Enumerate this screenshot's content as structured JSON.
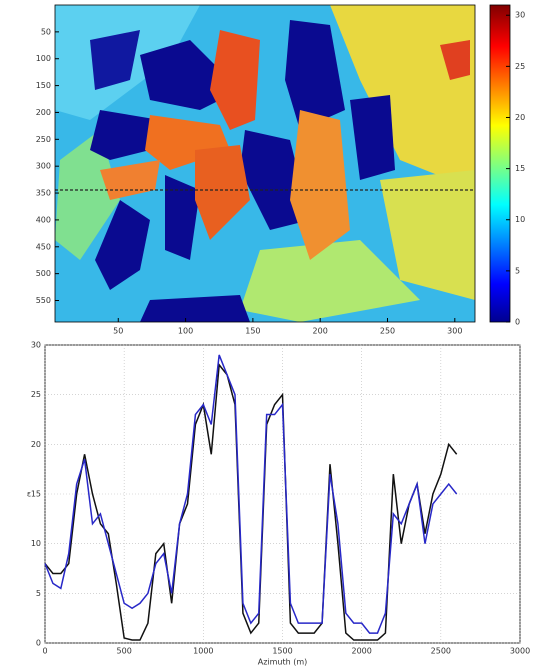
{
  "chart_data": [
    {
      "type": "heatmap",
      "xlim": [
        3,
        315
      ],
      "ylim": [
        0,
        590
      ],
      "xticks": [
        50,
        100,
        150,
        200,
        250,
        300
      ],
      "yticks": [
        50,
        100,
        150,
        200,
        250,
        300,
        350,
        400,
        450,
        500,
        550
      ],
      "colorbar": {
        "clim": [
          0,
          31
        ],
        "ticks": [
          0,
          5,
          10,
          15,
          20,
          25,
          30
        ]
      }
    },
    {
      "type": "line",
      "xlabel": "Azimuth (m)",
      "ylabel": "ε",
      "xlim": [
        0,
        3000
      ],
      "ylim": [
        0,
        30
      ],
      "xticks": [
        0,
        500,
        1000,
        1500,
        2000,
        2500,
        3000
      ],
      "yticks": [
        0,
        5,
        10,
        15,
        20,
        25,
        30
      ],
      "grid": true,
      "x": [
        0,
        50,
        100,
        150,
        200,
        250,
        300,
        350,
        400,
        450,
        500,
        550,
        600,
        650,
        700,
        750,
        800,
        850,
        900,
        950,
        1000,
        1050,
        1100,
        1150,
        1200,
        1250,
        1300,
        1350,
        1400,
        1450,
        1500,
        1550,
        1600,
        1650,
        1700,
        1750,
        1800,
        1850,
        1900,
        1950,
        2000,
        2050,
        2100,
        2150,
        2200,
        2250,
        2300,
        2350,
        2400,
        2450,
        2500,
        2550,
        2600
      ],
      "series": [
        {
          "color": "#111111",
          "values": [
            8,
            7,
            7,
            8,
            15,
            19,
            15,
            12,
            11,
            6,
            0.5,
            0.3,
            0.3,
            2,
            9,
            10,
            4,
            12,
            14,
            22,
            24,
            19,
            28,
            27,
            24,
            3,
            1,
            2,
            22,
            24,
            25,
            2,
            1,
            1,
            1,
            2,
            18,
            10,
            1,
            0.3,
            0.3,
            0.3,
            0.3,
            1,
            17,
            10,
            14,
            16,
            11,
            15,
            17,
            20,
            19
          ]
        },
        {
          "color": "#2828c8",
          "values": [
            8,
            6,
            5.5,
            9,
            16,
            18.5,
            12,
            13,
            10,
            7,
            4,
            3.5,
            4,
            5,
            8,
            9,
            5,
            12,
            15,
            23,
            24,
            22,
            29,
            27,
            25,
            4,
            2,
            3,
            23,
            23,
            24,
            4,
            2,
            2,
            2,
            2,
            17,
            12,
            3,
            2,
            2,
            1,
            1,
            3,
            13,
            12,
            14,
            16,
            10,
            14,
            15,
            16,
            15
          ]
        }
      ]
    }
  ]
}
